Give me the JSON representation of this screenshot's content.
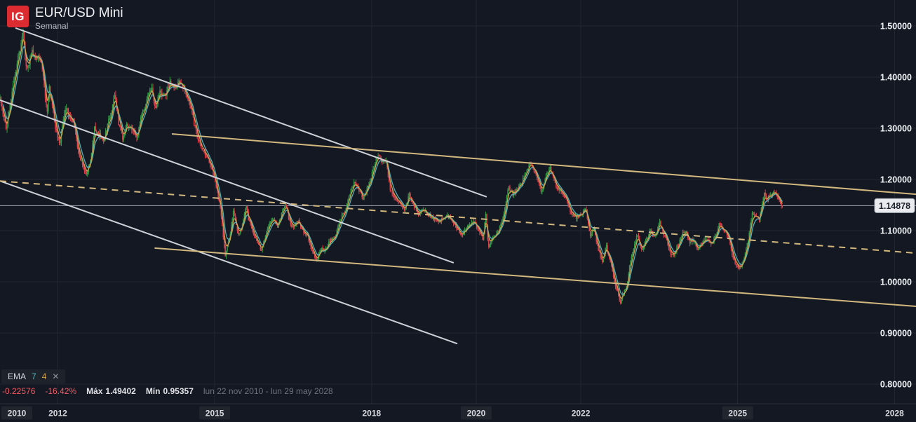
{
  "header": {
    "logo": "IG",
    "title": "EUR/USD Mini",
    "subtitle": "Semanal"
  },
  "indicator": {
    "name": "EMA",
    "fast_period": "7",
    "slow_period": "4",
    "close_glyph": "✕"
  },
  "stats": {
    "change": "-0.22576",
    "change_pct": "-16.42%",
    "max_label": "Máx",
    "max_value": "1.49402",
    "min_label": "Mín",
    "min_value": "0.95357",
    "date_range": "lun 22 nov 2010 - lun 29 may 2028"
  },
  "chart_data": {
    "type": "candlestick",
    "instrument": "EUR/USD Mini",
    "timeframe": "Semanal",
    "x_axis": {
      "start_year": 2010.894,
      "end_year": 2028.41,
      "start_label": "lun 22 nov 2010",
      "end_label": "lun 29 may 2028",
      "ticks": [
        {
          "year": 2010,
          "label": "2010",
          "boxed": true
        },
        {
          "year": 2012,
          "label": "2012",
          "boxed": false
        },
        {
          "year": 2015,
          "label": "2015",
          "boxed": true
        },
        {
          "year": 2018,
          "label": "2018",
          "boxed": false
        },
        {
          "year": 2020,
          "label": "2020",
          "boxed": true
        },
        {
          "year": 2022,
          "label": "2022",
          "boxed": false
        },
        {
          "year": 2025,
          "label": "2025",
          "boxed": true
        },
        {
          "year": 2028,
          "label": "2028",
          "boxed": false
        }
      ]
    },
    "y_axis": {
      "ticks": [
        {
          "value": 1.5,
          "label": "1.50000"
        },
        {
          "value": 1.4,
          "label": "1.40000"
        },
        {
          "value": 1.3,
          "label": "1.30000"
        },
        {
          "value": 1.2,
          "label": "1.20000"
        },
        {
          "value": 1.1,
          "label": "1.10000"
        },
        {
          "value": 1.0,
          "label": "1.00000"
        },
        {
          "value": 0.9,
          "label": "0.90000"
        },
        {
          "value": 0.8,
          "label": "0.80000"
        }
      ]
    },
    "last_price": 1.14878,
    "last_price_label": "1.14878",
    "max_price": 1.49402,
    "min_price": 0.95357,
    "change": -0.22576,
    "change_pct": -16.42,
    "data_end_year": 2025.862,
    "emas": [
      {
        "period": 7,
        "color": "#53b1bc"
      },
      {
        "period": 4,
        "color": "#cfa04a"
      }
    ],
    "trendlines": [
      {
        "kind": "white-resistance-upper",
        "style": "solid",
        "color": "#cdd1d8",
        "p1": [
          2011.19,
          1.496
        ],
        "p2": [
          2020.2,
          1.166
        ]
      },
      {
        "kind": "white-resistance-lower",
        "style": "solid",
        "color": "#cdd1d8",
        "p1": [
          2010.894,
          1.355
        ],
        "p2": [
          2019.57,
          1.037
        ]
      },
      {
        "kind": "white-support",
        "style": "solid",
        "color": "#cdd1d8",
        "p1": [
          2010.894,
          1.197
        ],
        "p2": [
          2019.64,
          0.879
        ]
      },
      {
        "kind": "gold-channel-top",
        "style": "solid",
        "color": "#d2b87e",
        "p1": [
          2014.18,
          1.289
        ],
        "p2": [
          2028.41,
          1.171
        ]
      },
      {
        "kind": "gold-channel-bottom",
        "style": "solid",
        "color": "#d2b87e",
        "p1": [
          2013.85,
          1.066
        ],
        "p2": [
          2028.41,
          0.952
        ]
      },
      {
        "kind": "gold-channel-mid",
        "style": "dashed",
        "color": "#d2b87e",
        "p1": [
          2010.894,
          1.197
        ],
        "p2": [
          2028.41,
          1.056
        ]
      }
    ],
    "weekly_close_anchors": [
      [
        2010.9,
        1.358
      ],
      [
        2010.98,
        1.31
      ],
      [
        2011.02,
        1.298
      ],
      [
        2011.08,
        1.345
      ],
      [
        2011.17,
        1.4
      ],
      [
        2011.23,
        1.432
      ],
      [
        2011.3,
        1.465
      ],
      [
        2011.34,
        1.488
      ],
      [
        2011.38,
        1.43
      ],
      [
        2011.42,
        1.412
      ],
      [
        2011.5,
        1.452
      ],
      [
        2011.57,
        1.435
      ],
      [
        2011.65,
        1.442
      ],
      [
        2011.72,
        1.408
      ],
      [
        2011.76,
        1.358
      ],
      [
        2011.8,
        1.33
      ],
      [
        2011.83,
        1.388
      ],
      [
        2011.88,
        1.352
      ],
      [
        2011.95,
        1.3
      ],
      [
        2012.04,
        1.27
      ],
      [
        2012.1,
        1.316
      ],
      [
        2012.16,
        1.345
      ],
      [
        2012.22,
        1.32
      ],
      [
        2012.3,
        1.313
      ],
      [
        2012.4,
        1.25
      ],
      [
        2012.55,
        1.21
      ],
      [
        2012.62,
        1.236
      ],
      [
        2012.7,
        1.3
      ],
      [
        2012.78,
        1.29
      ],
      [
        2012.88,
        1.272
      ],
      [
        2012.95,
        1.308
      ],
      [
        2013.02,
        1.33
      ],
      [
        2013.09,
        1.366
      ],
      [
        2013.17,
        1.306
      ],
      [
        2013.24,
        1.282
      ],
      [
        2013.32,
        1.308
      ],
      [
        2013.42,
        1.3
      ],
      [
        2013.51,
        1.28
      ],
      [
        2013.6,
        1.328
      ],
      [
        2013.7,
        1.353
      ],
      [
        2013.79,
        1.378
      ],
      [
        2013.86,
        1.34
      ],
      [
        2013.95,
        1.37
      ],
      [
        2014.05,
        1.362
      ],
      [
        2014.15,
        1.388
      ],
      [
        2014.25,
        1.38
      ],
      [
        2014.35,
        1.393
      ],
      [
        2014.45,
        1.365
      ],
      [
        2014.55,
        1.34
      ],
      [
        2014.65,
        1.29
      ],
      [
        2014.75,
        1.262
      ],
      [
        2014.85,
        1.245
      ],
      [
        2014.95,
        1.222
      ],
      [
        2015.03,
        1.185
      ],
      [
        2015.12,
        1.135
      ],
      [
        2015.2,
        1.052
      ],
      [
        2015.28,
        1.085
      ],
      [
        2015.36,
        1.14
      ],
      [
        2015.44,
        1.095
      ],
      [
        2015.52,
        1.105
      ],
      [
        2015.6,
        1.15
      ],
      [
        2015.65,
        1.12
      ],
      [
        2015.75,
        1.092
      ],
      [
        2015.83,
        1.072
      ],
      [
        2015.9,
        1.062
      ],
      [
        2015.97,
        1.09
      ],
      [
        2016.05,
        1.115
      ],
      [
        2016.12,
        1.128
      ],
      [
        2016.2,
        1.105
      ],
      [
        2016.28,
        1.132
      ],
      [
        2016.35,
        1.152
      ],
      [
        2016.45,
        1.112
      ],
      [
        2016.52,
        1.105
      ],
      [
        2016.6,
        1.12
      ],
      [
        2016.68,
        1.1
      ],
      [
        2016.78,
        1.09
      ],
      [
        2016.85,
        1.06
      ],
      [
        2016.95,
        1.04
      ],
      [
        2017.02,
        1.066
      ],
      [
        2017.1,
        1.062
      ],
      [
        2017.2,
        1.08
      ],
      [
        2017.3,
        1.09
      ],
      [
        2017.4,
        1.122
      ],
      [
        2017.5,
        1.142
      ],
      [
        2017.6,
        1.18
      ],
      [
        2017.68,
        1.196
      ],
      [
        2017.76,
        1.178
      ],
      [
        2017.83,
        1.162
      ],
      [
        2017.9,
        1.18
      ],
      [
        2017.98,
        1.2
      ],
      [
        2018.05,
        1.228
      ],
      [
        2018.12,
        1.248
      ],
      [
        2018.2,
        1.232
      ],
      [
        2018.28,
        1.236
      ],
      [
        2018.35,
        1.18
      ],
      [
        2018.45,
        1.162
      ],
      [
        2018.55,
        1.152
      ],
      [
        2018.63,
        1.138
      ],
      [
        2018.72,
        1.17
      ],
      [
        2018.8,
        1.152
      ],
      [
        2018.9,
        1.132
      ],
      [
        2019.0,
        1.142
      ],
      [
        2019.1,
        1.13
      ],
      [
        2019.2,
        1.122
      ],
      [
        2019.3,
        1.118
      ],
      [
        2019.42,
        1.13
      ],
      [
        2019.52,
        1.122
      ],
      [
        2019.62,
        1.106
      ],
      [
        2019.74,
        1.092
      ],
      [
        2019.85,
        1.108
      ],
      [
        2019.95,
        1.118
      ],
      [
        2020.05,
        1.102
      ],
      [
        2020.13,
        1.082
      ],
      [
        2020.18,
        1.138
      ],
      [
        2020.23,
        1.068
      ],
      [
        2020.32,
        1.088
      ],
      [
        2020.42,
        1.098
      ],
      [
        2020.52,
        1.128
      ],
      [
        2020.62,
        1.186
      ],
      [
        2020.7,
        1.172
      ],
      [
        2020.8,
        1.182
      ],
      [
        2020.9,
        1.2
      ],
      [
        2021.0,
        1.225
      ],
      [
        2021.05,
        1.232
      ],
      [
        2021.15,
        1.205
      ],
      [
        2021.25,
        1.175
      ],
      [
        2021.35,
        1.215
      ],
      [
        2021.42,
        1.222
      ],
      [
        2021.52,
        1.188
      ],
      [
        2021.62,
        1.178
      ],
      [
        2021.72,
        1.16
      ],
      [
        2021.82,
        1.135
      ],
      [
        2021.9,
        1.126
      ],
      [
        2022.0,
        1.132
      ],
      [
        2022.1,
        1.142
      ],
      [
        2022.18,
        1.092
      ],
      [
        2022.26,
        1.102
      ],
      [
        2022.34,
        1.06
      ],
      [
        2022.42,
        1.04
      ],
      [
        2022.48,
        1.072
      ],
      [
        2022.56,
        1.042
      ],
      [
        2022.64,
        1.002
      ],
      [
        2022.7,
        0.98
      ],
      [
        2022.75,
        0.958
      ],
      [
        2022.82,
        0.978
      ],
      [
        2022.88,
        0.99
      ],
      [
        2022.95,
        1.042
      ],
      [
        2023.02,
        1.072
      ],
      [
        2023.09,
        1.092
      ],
      [
        2023.17,
        1.062
      ],
      [
        2023.25,
        1.082
      ],
      [
        2023.33,
        1.098
      ],
      [
        2023.42,
        1.088
      ],
      [
        2023.5,
        1.118
      ],
      [
        2023.56,
        1.1
      ],
      [
        2023.64,
        1.082
      ],
      [
        2023.72,
        1.056
      ],
      [
        2023.78,
        1.052
      ],
      [
        2023.86,
        1.072
      ],
      [
        2023.94,
        1.092
      ],
      [
        2024.0,
        1.102
      ],
      [
        2024.08,
        1.078
      ],
      [
        2024.16,
        1.082
      ],
      [
        2024.24,
        1.064
      ],
      [
        2024.32,
        1.076
      ],
      [
        2024.42,
        1.084
      ],
      [
        2024.5,
        1.072
      ],
      [
        2024.58,
        1.092
      ],
      [
        2024.66,
        1.116
      ],
      [
        2024.74,
        1.102
      ],
      [
        2024.82,
        1.088
      ],
      [
        2024.9,
        1.052
      ],
      [
        2024.98,
        1.03
      ],
      [
        2025.04,
        1.026
      ],
      [
        2025.12,
        1.042
      ],
      [
        2025.2,
        1.082
      ],
      [
        2025.28,
        1.135
      ],
      [
        2025.34,
        1.132
      ],
      [
        2025.42,
        1.122
      ],
      [
        2025.5,
        1.172
      ],
      [
        2025.56,
        1.162
      ],
      [
        2025.64,
        1.168
      ],
      [
        2025.72,
        1.178
      ],
      [
        2025.78,
        1.164
      ],
      [
        2025.82,
        1.152
      ],
      [
        2025.86,
        1.149
      ]
    ],
    "colors": {
      "up": "#30a046",
      "down": "#e4414d",
      "grid": "#212631",
      "separator": "#2b303b",
      "price_line": "#9aa0ab",
      "axis_text": "#eef1f4",
      "year_text": "#d8dade",
      "year_chip_bg": "#21252e",
      "badge_bg": "#e9ebef",
      "badge_text": "#1c202a",
      "badge_border": "#a9aeb8",
      "logo_red": "#dc2b31"
    }
  }
}
